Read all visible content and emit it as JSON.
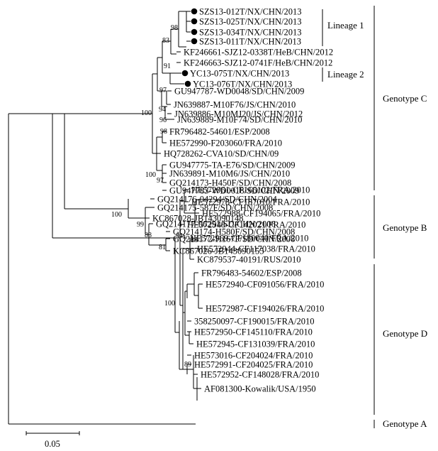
{
  "taxa": [
    {
      "label": "SZS13-012T/NX/CHN/2013",
      "marked": true
    },
    {
      "label": "SZS13-025T/NX/CHN/2013",
      "marked": true
    },
    {
      "label": "SZS13-034T/NX/CHN/2013",
      "marked": true
    },
    {
      "label": "SZS13-011T/NX/CHN/2013",
      "marked": true
    },
    {
      "label": "KF246661-SJZ12-0338T/HeB/CHN/2012",
      "marked": false
    },
    {
      "label": "KF246663-SJZ12-0741F/HeB/CHN/2012",
      "marked": false
    },
    {
      "label": "YC13-075T/NX/CHN/2013",
      "marked": true
    },
    {
      "label": "YC13-076T/NX/CHN/2013",
      "marked": true
    },
    {
      "label": "GU947787-WD0048/SD/CHN/2009",
      "marked": false
    },
    {
      "label": "JN639887-M10F76/JS/CHN/2010",
      "marked": false
    },
    {
      "label": "JN639886-M10MJ20/JS/CHN/2012",
      "marked": false
    },
    {
      "label": "JN639889-M10F74/SD/CHN/2010",
      "marked": false
    },
    {
      "label": "FR796482-54601/ESP/2008",
      "marked": false
    },
    {
      "label": "HE572990-F203060/FRA/2010",
      "marked": false
    },
    {
      "label": "HQ728262-CVA10/SD/CHN/09",
      "marked": false
    },
    {
      "label": "GU947775-TA-E76/SD/CHN/2009",
      "marked": false
    },
    {
      "label": "JN639891-M10M6/JS/CHN/2010",
      "marked": false
    },
    {
      "label": "GQ214173-H450F/SD/CHN/2008",
      "marked": false
    },
    {
      "label": "GU947783-WD0018/SD/CHN/2009",
      "marked": false
    },
    {
      "label": "GQ214176-04294/SD/CHN/2004",
      "marked": false
    },
    {
      "label": "GQ214175-587F/SD/CHN/2008",
      "marked": false
    },
    {
      "label": "KC867028-JB143090148",
      "marked": false
    },
    {
      "label": "GQ214177-06251/SD/CHN/2006",
      "marked": false
    },
    {
      "label": "GQ214174-H580F/SD/CHN/2008",
      "marked": false
    },
    {
      "label": "GQ214172-H167F/SD/CHN/2008",
      "marked": false
    },
    {
      "label": "KC867026-JB143090155",
      "marked": false
    },
    {
      "label": "HE572961-CF166102/FRA/2010",
      "marked": false
    },
    {
      "label": "HE572978-CF187010/FRA/2010",
      "marked": false
    },
    {
      "label": "HE572988-CF194065/FRA/2010",
      "marked": false
    },
    {
      "label": "HE572948-CF142021/FRA/2010",
      "marked": false
    },
    {
      "label": "HE572969-CF180040/FRA/2010",
      "marked": false
    },
    {
      "label": "HE572944-CF117038/FRA/2010",
      "marked": false
    },
    {
      "label": "KC879537-40191/RUS/2010",
      "marked": false
    },
    {
      "label": "FR796483-54602/ESP/2008",
      "marked": false
    },
    {
      "label": "HE572940-CF091056/FRA/2010",
      "marked": false
    },
    {
      "label": "HE572987-CF194026/FRA/2010",
      "marked": false
    },
    {
      "label": "358250097-CF190015/FRA/2010",
      "marked": false
    },
    {
      "label": "HE572950-CF145110/FRA/2010",
      "marked": false
    },
    {
      "label": "HE572945-CF131039/FRA/2010",
      "marked": false
    },
    {
      "label": "HE573016-CF204024/FRA/2010",
      "marked": false
    },
    {
      "label": "HE572991-CF204025/FRA/2010",
      "marked": false
    },
    {
      "label": "HE572952-CF148028/FRA/2010",
      "marked": false
    },
    {
      "label": "AF081300-Kowalik/USA/1950",
      "marked": false
    }
  ],
  "bootstrap": [
    "98",
    "83",
    "91",
    "100",
    "97",
    "94",
    "96",
    "100",
    "98",
    "97",
    "100",
    "99",
    "88",
    "81",
    "94",
    "100",
    "83",
    "89"
  ],
  "lineages": [
    {
      "label": "Lineage 1"
    },
    {
      "label": "Lineage 2"
    }
  ],
  "genotypes": [
    {
      "label": "Genotype C"
    },
    {
      "label": "Genotype B"
    },
    {
      "label": "Genotype D"
    },
    {
      "label": "Genotype A"
    }
  ],
  "scale_bar": {
    "label": "0.05",
    "value": 0.05
  }
}
